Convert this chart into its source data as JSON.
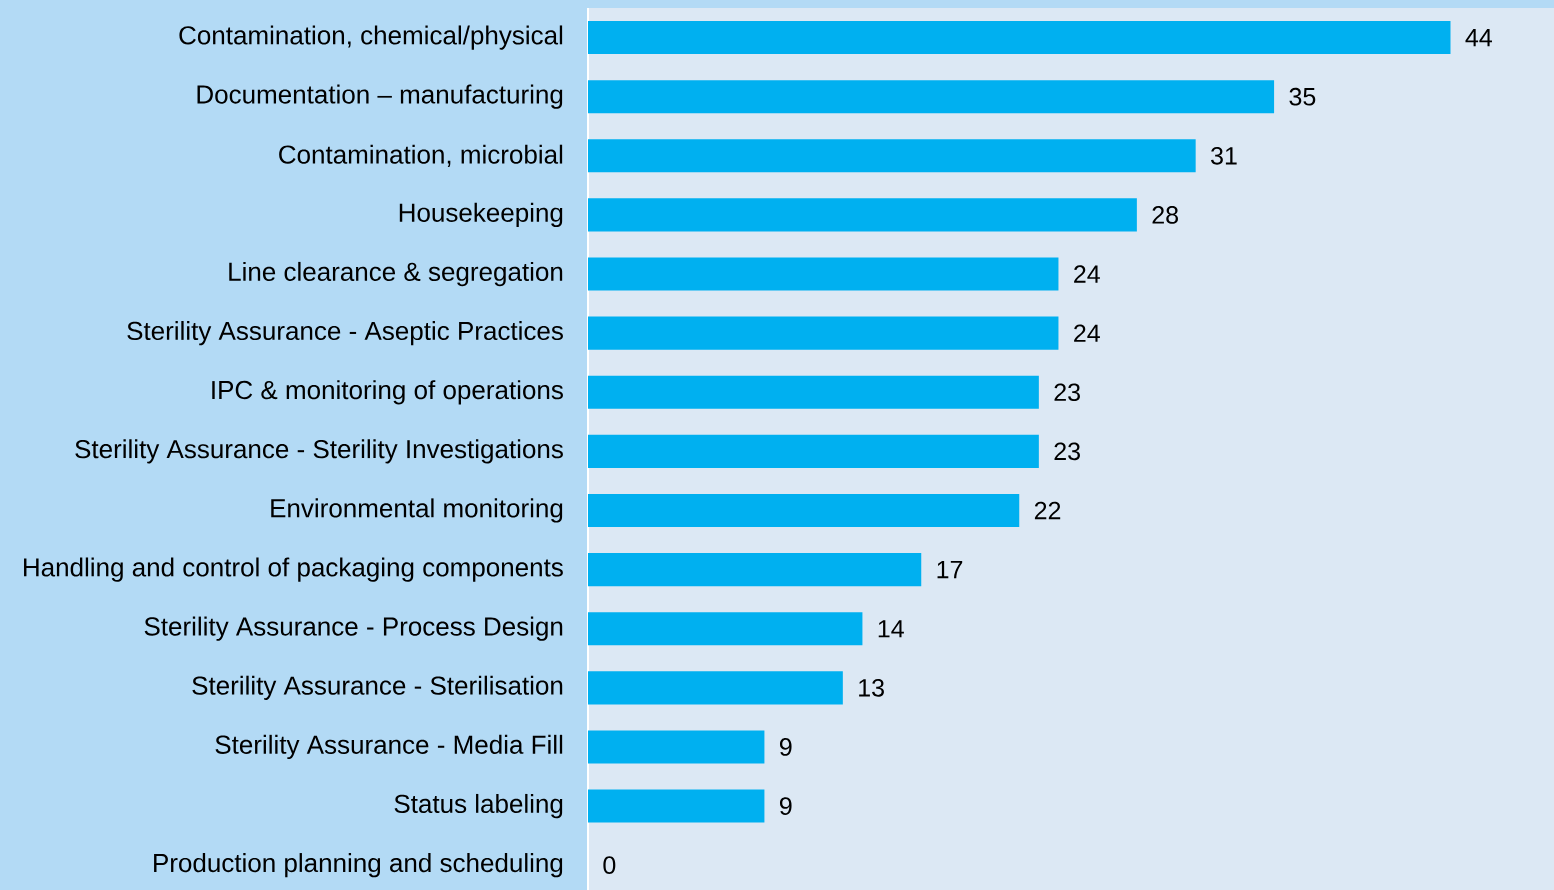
{
  "chart_data": {
    "type": "bar",
    "orientation": "horizontal",
    "categories": [
      "Contamination, chemical/physical",
      "Documentation – manufacturing",
      "Contamination, microbial",
      "Housekeeping",
      "Line clearance & segregation",
      "Sterility Assurance - Aseptic Practices",
      "IPC & monitoring of operations",
      "Sterility Assurance - Sterility Investigations",
      "Environmental monitoring",
      "Handling and control of packaging components",
      "Sterility Assurance - Process Design",
      "Sterility Assurance - Sterilisation",
      "Sterility Assurance - Media Fill",
      "Status labeling",
      "Production planning and scheduling"
    ],
    "values": [
      44,
      35,
      31,
      28,
      24,
      24,
      23,
      23,
      22,
      17,
      14,
      13,
      9,
      9,
      0
    ],
    "color": "#00b0f0",
    "data_labels": true
  }
}
